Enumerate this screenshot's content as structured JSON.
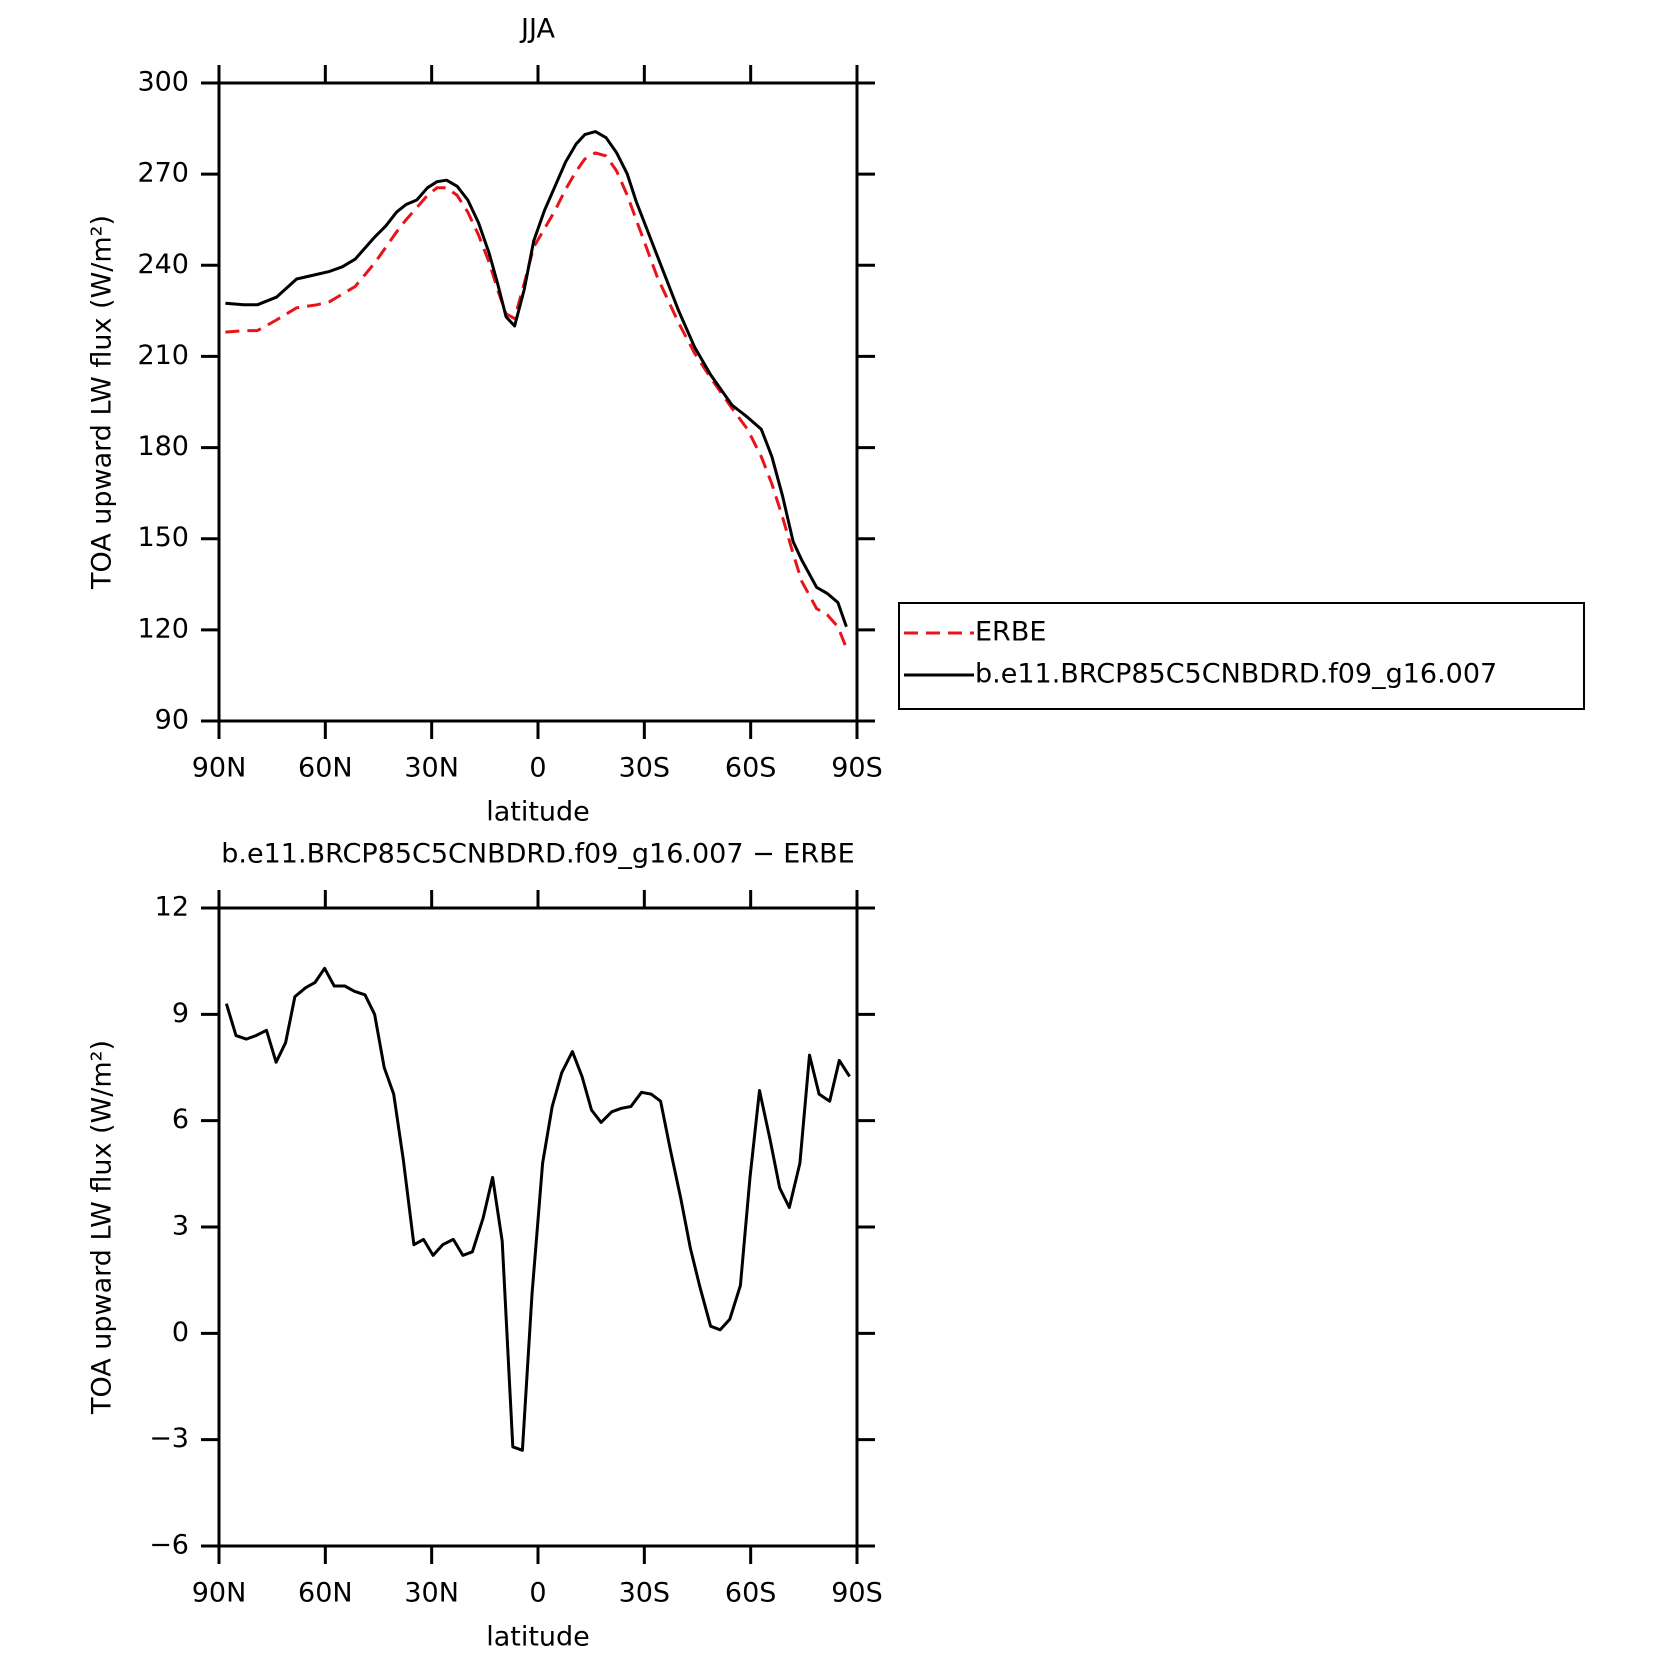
{
  "chart_data": [
    {
      "type": "line",
      "title": "JJA",
      "ylabel": "TOA upward LW flux (W/m²)",
      "xlabel": "latitude",
      "x": [
        88.2,
        83.1,
        79.2,
        73.8,
        68.1,
        62.4,
        58.8,
        55.2,
        51.6,
        45.9,
        42.9,
        39.9,
        37.2,
        34.2,
        31.2,
        28.5,
        25.8,
        22.8,
        19.8,
        16.8,
        13.8,
        11.4,
        9,
        6.6,
        3.9,
        1.2,
        -1.8,
        -4.8,
        -7.8,
        -10.8,
        -13.2,
        -16.2,
        -19.2,
        -22.2,
        -25.2,
        -27.7,
        -33.7,
        -39.7,
        -44.2,
        -48.7,
        -54.7,
        -59.1,
        -63,
        -66,
        -69,
        -72,
        -74.4,
        -78.6,
        -81.6,
        -84.6,
        -87
      ],
      "series": [
        {
          "name": "ERBE",
          "color": "#e8141a",
          "linestyle": "dashed",
          "values": [
            218,
            218.5,
            218.5,
            222,
            226,
            227,
            228,
            230.5,
            233,
            241,
            246,
            251,
            255,
            259,
            263,
            265.5,
            265.5,
            263,
            257.5,
            250,
            241,
            232,
            224,
            222.5,
            234,
            246,
            252,
            258,
            265,
            271,
            275,
            277,
            276,
            271,
            263,
            255,
            236,
            221,
            211,
            203,
            193,
            186,
            177,
            168,
            157,
            145,
            136,
            127,
            125,
            121,
            114
          ]
        },
        {
          "name": "b.e11.BRCP85C5CNBDRD.f09_g16.007",
          "color": "#000000",
          "linestyle": "solid",
          "values": [
            227.5,
            227,
            227,
            229.5,
            235.5,
            237,
            238,
            239.5,
            242,
            249.5,
            253,
            257.5,
            260,
            261.5,
            265.5,
            267.5,
            268,
            266,
            261.5,
            254,
            244,
            234,
            223,
            220,
            232,
            248,
            258,
            266,
            274,
            280,
            283,
            284,
            282,
            277,
            270,
            261,
            243,
            225,
            213,
            204,
            194,
            190,
            186,
            177,
            164,
            149,
            143,
            134,
            132,
            129,
            121
          ]
        }
      ],
      "xlim": [
        90,
        -90
      ],
      "xticks": [
        {
          "value": 90,
          "label": "90N"
        },
        {
          "value": 60,
          "label": "60N"
        },
        {
          "value": 30,
          "label": "30N"
        },
        0,
        {
          "value": -30,
          "label": "30S"
        },
        {
          "value": -60,
          "label": "60S"
        },
        {
          "value": -90,
          "label": "90S"
        }
      ],
      "ylim": [
        90,
        300
      ],
      "yticks": [
        90,
        120,
        150,
        180,
        210,
        240,
        270,
        300
      ],
      "legend": "outside-right"
    },
    {
      "type": "line",
      "title": "b.e11.BRCP85C5CNBDRD.f09_g16.007 − ERBE",
      "ylabel": "TOA upward LW flux (W/m²)",
      "xlabel": "latitude",
      "x": [
        87.9,
        85.2,
        82.3,
        79.6,
        76.6,
        73.9,
        71.2,
        68.6,
        65.6,
        62.9,
        60.2,
        57.5,
        54.5,
        51.8,
        48.8,
        46.1,
        43.4,
        40.7,
        38.0,
        35.0,
        32.3,
        29.6,
        26.9,
        23.9,
        21.2,
        18.5,
        15.5,
        12.8,
        10.1,
        7.1,
        4.4,
        1.7,
        -1.3,
        -4.0,
        -6.7,
        -9.7,
        -12.4,
        -15.1,
        -17.8,
        -20.8,
        -23.5,
        -26.2,
        -29.2,
        -31.9,
        -34.6,
        -37.3,
        -40.3,
        -43.0,
        -45.7,
        -48.7,
        -51.4,
        -54.1,
        -57.1,
        -59.8,
        -62.5,
        -65.5,
        -68.2,
        -70.9,
        -73.9,
        -76.6,
        -79.3,
        -82.3,
        -85.0,
        -87.9
      ],
      "values": [
        9.3,
        8.4,
        8.3,
        8.4,
        8.55,
        7.65,
        8.2,
        9.5,
        9.75,
        9.9,
        10.3,
        9.8,
        9.8,
        9.65,
        9.55,
        9.0,
        7.5,
        6.75,
        4.9,
        2.5,
        2.65,
        2.2,
        2.5,
        2.65,
        2.2,
        2.3,
        3.25,
        4.4,
        2.6,
        -3.2,
        -3.3,
        1.1,
        4.8,
        6.4,
        7.35,
        7.95,
        7.25,
        6.3,
        5.95,
        6.25,
        6.35,
        6.4,
        6.8,
        6.75,
        6.55,
        5.2,
        3.8,
        2.4,
        1.3,
        0.2,
        0.1,
        0.4,
        1.35,
        4.4,
        6.85,
        5.45,
        4.1,
        3.55,
        4.8,
        7.85,
        6.75,
        6.55,
        7.7,
        7.25
      ],
      "color": "#000000",
      "xlim": [
        90,
        -90
      ],
      "xticks": [
        {
          "value": 90,
          "label": "90N"
        },
        {
          "value": 60,
          "label": "60N"
        },
        {
          "value": 30,
          "label": "30N"
        },
        0,
        {
          "value": -30,
          "label": "30S"
        },
        {
          "value": -60,
          "label": "60S"
        },
        {
          "value": -90,
          "label": "90S"
        }
      ],
      "ylim": [
        -6,
        12
      ],
      "yticks": [
        {
          "value": -6,
          "label": "−6"
        },
        {
          "value": -3,
          "label": "−3"
        },
        0,
        3,
        6,
        9,
        12
      ]
    }
  ]
}
